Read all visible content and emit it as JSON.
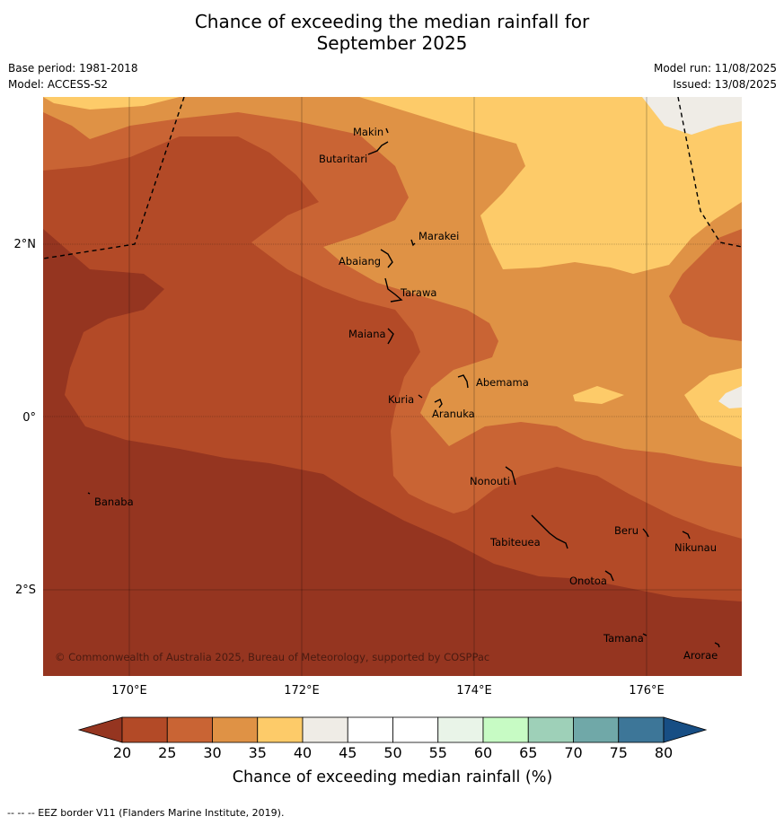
{
  "header": {
    "title_line1": "Chance of exceeding the median rainfall for",
    "title_line2": "September 2025",
    "base_period": "Base period: 1981-2018",
    "model": "Model: ACCESS-S2",
    "model_run": "Model run: 11/08/2025",
    "issued": "Issued: 13/08/2025"
  },
  "map": {
    "lon_ticks": [
      "170°E",
      "172°E",
      "174°E",
      "176°E"
    ],
    "lat_ticks": [
      "2°N",
      "0°",
      "2°S"
    ],
    "copyright": "© Commonwealth of Australia 2025, Bureau of Meteorology, supported by COSPPac",
    "places": [
      "Makin",
      "Butaritari",
      "Marakei",
      "Abaiang",
      "Tarawa",
      "Maiana",
      "Abemama",
      "Kuria",
      "Aranuka",
      "Banaba",
      "Nonouti",
      "Beru",
      "Tabiteuea",
      "Nikunau",
      "Onotoa",
      "Tamana",
      "Arorae"
    ]
  },
  "colorbar": {
    "ticks": [
      "20",
      "25",
      "30",
      "35",
      "40",
      "45",
      "50",
      "55",
      "60",
      "65",
      "70",
      "75",
      "80"
    ],
    "label": "Chance of exceeding median rainfall (%)",
    "colors": [
      "#953520",
      "#b34a27",
      "#c96434",
      "#df9245",
      "#fdcb69",
      "#efece6",
      "#ffffff",
      "#ffffff",
      "#e9f4e8",
      "#c7fbc4",
      "#9ed0b8",
      "#70a8a8",
      "#3d7698",
      "#174e84"
    ]
  },
  "footer": {
    "eez_note": "--  --  -- EEZ border V11 (Flanders Marine Institute, 2019)."
  }
}
